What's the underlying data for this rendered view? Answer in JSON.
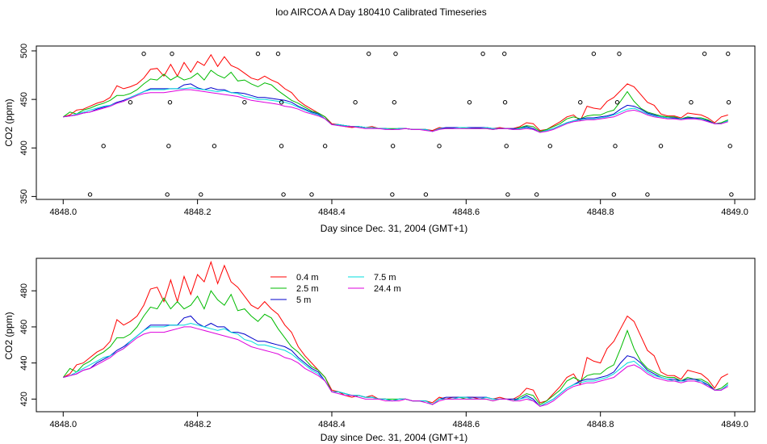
{
  "title": "loo AIRCOA A  Day 180410  Calibrated Timeseries",
  "chart_data": [
    {
      "type": "line",
      "xlabel": "Day since Dec. 31, 2004 (GMT+1)",
      "ylabel": "CO2 (ppm)",
      "xlim": [
        4847.96,
        4849.03
      ],
      "ylim": [
        347,
        505
      ],
      "xticks": [
        4848.0,
        4848.2,
        4848.4,
        4848.6,
        4848.8,
        4849.0
      ],
      "xtick_labels": [
        "4848.0",
        "4848.2",
        "4848.4",
        "4848.6",
        "4848.8",
        "4849.0"
      ],
      "yticks": [
        350,
        400,
        450,
        500
      ],
      "ytick_labels": [
        "350",
        "400",
        "450",
        "500"
      ],
      "grid": false,
      "legend": "none",
      "flag_points": [
        {
          "x": 4848.04,
          "y": 352
        },
        {
          "x": 4848.06,
          "y": 402
        },
        {
          "x": 4848.1,
          "y": 447
        },
        {
          "x": 4848.12,
          "y": 497
        },
        {
          "x": 4848.155,
          "y": 352
        },
        {
          "x": 4848.157,
          "y": 402
        },
        {
          "x": 4848.159,
          "y": 447
        },
        {
          "x": 4848.162,
          "y": 497
        },
        {
          "x": 4848.205,
          "y": 352
        },
        {
          "x": 4848.225,
          "y": 402
        },
        {
          "x": 4848.27,
          "y": 447
        },
        {
          "x": 4848.29,
          "y": 497
        },
        {
          "x": 4848.32,
          "y": 497
        },
        {
          "x": 4848.325,
          "y": 447
        },
        {
          "x": 4848.325,
          "y": 402
        },
        {
          "x": 4848.328,
          "y": 352
        },
        {
          "x": 4848.37,
          "y": 352
        },
        {
          "x": 4848.39,
          "y": 402
        },
        {
          "x": 4848.435,
          "y": 447
        },
        {
          "x": 4848.455,
          "y": 497
        },
        {
          "x": 4848.49,
          "y": 352
        },
        {
          "x": 4848.491,
          "y": 402
        },
        {
          "x": 4848.493,
          "y": 447
        },
        {
          "x": 4848.495,
          "y": 497
        },
        {
          "x": 4848.54,
          "y": 352
        },
        {
          "x": 4848.56,
          "y": 402
        },
        {
          "x": 4848.605,
          "y": 447
        },
        {
          "x": 4848.625,
          "y": 497
        },
        {
          "x": 4848.657,
          "y": 497
        },
        {
          "x": 4848.658,
          "y": 447
        },
        {
          "x": 4848.66,
          "y": 402
        },
        {
          "x": 4848.662,
          "y": 352
        },
        {
          "x": 4848.705,
          "y": 352
        },
        {
          "x": 4848.725,
          "y": 402
        },
        {
          "x": 4848.77,
          "y": 447
        },
        {
          "x": 4848.79,
          "y": 497
        },
        {
          "x": 4848.82,
          "y": 352
        },
        {
          "x": 4848.822,
          "y": 402
        },
        {
          "x": 4848.825,
          "y": 447
        },
        {
          "x": 4848.828,
          "y": 497
        },
        {
          "x": 4848.87,
          "y": 352
        },
        {
          "x": 4848.89,
          "y": 402
        },
        {
          "x": 4848.935,
          "y": 447
        },
        {
          "x": 4848.955,
          "y": 497
        },
        {
          "x": 4848.99,
          "y": 497
        },
        {
          "x": 4848.991,
          "y": 447
        },
        {
          "x": 4848.993,
          "y": 402
        },
        {
          "x": 4848.995,
          "y": 352
        }
      ]
    },
    {
      "type": "line",
      "xlabel": "Day since Dec. 31, 2004 (GMT+1)",
      "ylabel": "CO2 (ppm)",
      "xlim": [
        4847.96,
        4849.03
      ],
      "ylim": [
        413,
        498
      ],
      "xticks": [
        4848.0,
        4848.2,
        4848.4,
        4848.6,
        4848.8,
        4849.0
      ],
      "xtick_labels": [
        "4848.0",
        "4848.2",
        "4848.4",
        "4848.6",
        "4848.8",
        "4849.0"
      ],
      "yticks": [
        420,
        440,
        460,
        480
      ],
      "ytick_labels": [
        "420",
        "440",
        "460",
        "480"
      ],
      "grid": false,
      "legend": "top-left, inside plot, two columns, no frame"
    }
  ],
  "shared_data": {
    "x": [
      4848.0,
      4848.01,
      4848.02,
      4848.03,
      4848.04,
      4848.05,
      4848.06,
      4848.07,
      4848.08,
      4848.09,
      4848.1,
      4848.11,
      4848.12,
      4848.13,
      4848.14,
      4848.15,
      4848.16,
      4848.17,
      4848.18,
      4848.19,
      4848.2,
      4848.21,
      4848.22,
      4848.23,
      4848.24,
      4848.25,
      4848.26,
      4848.27,
      4848.28,
      4848.29,
      4848.3,
      4848.31,
      4848.32,
      4848.33,
      4848.34,
      4848.35,
      4848.36,
      4848.37,
      4848.38,
      4848.39,
      4848.4,
      4848.41,
      4848.42,
      4848.43,
      4848.44,
      4848.45,
      4848.46,
      4848.47,
      4848.48,
      4848.49,
      4848.5,
      4848.51,
      4848.52,
      4848.53,
      4848.54,
      4848.55,
      4848.56,
      4848.57,
      4848.58,
      4848.59,
      4848.6,
      4848.61,
      4848.62,
      4848.63,
      4848.64,
      4848.65,
      4848.66,
      4848.67,
      4848.68,
      4848.69,
      4848.7,
      4848.71,
      4848.72,
      4848.73,
      4848.74,
      4848.75,
      4848.76,
      4848.77,
      4848.78,
      4848.79,
      4848.8,
      4848.81,
      4848.82,
      4848.83,
      4848.84,
      4848.85,
      4848.86,
      4848.87,
      4848.88,
      4848.89,
      4848.9,
      4848.91,
      4848.92,
      4848.93,
      4848.94,
      4848.95,
      4848.96,
      4848.97,
      4848.98,
      4848.99
    ],
    "series": [
      {
        "name": "0.4 m",
        "color": "#ff0000",
        "values": [
          432,
          434,
          439,
          440,
          443,
          446,
          448,
          452,
          464,
          461,
          463,
          466,
          472,
          481,
          482,
          474,
          486,
          474,
          488,
          478,
          489,
          485,
          496,
          484,
          494,
          485,
          482,
          477,
          472,
          470,
          474,
          470,
          467,
          461,
          457,
          449,
          444,
          440,
          436,
          432,
          425,
          424,
          422,
          421,
          422,
          421,
          422,
          420,
          420,
          419,
          420,
          420,
          419,
          419,
          419,
          418,
          421,
          420,
          421,
          421,
          421,
          421,
          420,
          421,
          420,
          421,
          420,
          420,
          422,
          426,
          425,
          418,
          419,
          423,
          427,
          432,
          434,
          428,
          443,
          441,
          440,
          448,
          452,
          459,
          466,
          463,
          455,
          447,
          444,
          435,
          433,
          433,
          431,
          436,
          435,
          434,
          431,
          426,
          432,
          434
        ]
      },
      {
        "name": "2.5 m",
        "color": "#00bb00",
        "values": [
          432,
          437,
          435,
          439,
          441,
          444,
          446,
          449,
          454,
          454,
          456,
          460,
          466,
          471,
          470,
          476,
          470,
          474,
          470,
          472,
          477,
          470,
          480,
          475,
          472,
          478,
          469,
          470,
          466,
          463,
          467,
          465,
          459,
          454,
          449,
          446,
          442,
          438,
          436,
          432,
          424,
          424,
          423,
          422,
          422,
          421,
          421,
          420,
          420,
          420,
          420,
          420,
          419,
          419,
          419,
          417,
          420,
          420,
          420,
          421,
          420,
          420,
          420,
          420,
          419,
          420,
          420,
          419,
          421,
          423,
          422,
          417,
          419,
          422,
          425,
          430,
          432,
          430,
          433,
          434,
          434,
          437,
          439,
          448,
          458,
          448,
          441,
          437,
          435,
          433,
          432,
          432,
          430,
          432,
          431,
          431,
          429,
          425,
          426,
          429
        ]
      },
      {
        "name": "5 m",
        "color": "#0000cc",
        "values": [
          432,
          433,
          434,
          436,
          437,
          440,
          442,
          444,
          447,
          449,
          452,
          455,
          458,
          461,
          461,
          461,
          461,
          461,
          465,
          466,
          462,
          460,
          462,
          460,
          460,
          457,
          457,
          456,
          454,
          452,
          452,
          451,
          450,
          449,
          447,
          443,
          440,
          437,
          435,
          430,
          424,
          424,
          423,
          422,
          422,
          421,
          421,
          420,
          420,
          419,
          420,
          420,
          419,
          419,
          419,
          417,
          420,
          421,
          421,
          421,
          421,
          421,
          421,
          421,
          420,
          420,
          420,
          420,
          420,
          422,
          420,
          416,
          418,
          420,
          423,
          426,
          428,
          430,
          431,
          431,
          432,
          433,
          435,
          440,
          444,
          443,
          440,
          436,
          434,
          432,
          431,
          431,
          430,
          431,
          431,
          430,
          428,
          425,
          425,
          428
        ]
      },
      {
        "name": "7.5 m",
        "color": "#00dddd",
        "values": [
          432,
          433,
          435,
          437,
          439,
          441,
          443,
          444,
          446,
          448,
          452,
          455,
          458,
          460,
          460,
          460,
          461,
          461,
          461,
          462,
          461,
          460,
          459,
          458,
          459,
          457,
          456,
          453,
          452,
          450,
          450,
          449,
          448,
          447,
          445,
          442,
          439,
          436,
          434,
          430,
          424,
          424,
          423,
          422,
          422,
          421,
          421,
          420,
          420,
          419,
          420,
          420,
          419,
          419,
          419,
          417,
          420,
          420,
          420,
          421,
          421,
          420,
          420,
          421,
          420,
          420,
          420,
          419,
          420,
          421,
          419,
          416,
          418,
          420,
          423,
          426,
          428,
          429,
          430,
          430,
          431,
          432,
          434,
          437,
          440,
          441,
          438,
          435,
          433,
          432,
          431,
          430,
          430,
          430,
          430,
          430,
          427,
          425,
          425,
          428
        ]
      },
      {
        "name": "24.4 m",
        "color": "#dd00dd",
        "values": [
          432,
          433,
          434,
          436,
          437,
          439,
          441,
          443,
          446,
          448,
          451,
          454,
          456,
          457,
          457,
          457,
          458,
          459,
          460,
          460,
          459,
          458,
          457,
          456,
          455,
          454,
          453,
          451,
          449,
          448,
          447,
          446,
          445,
          443,
          442,
          440,
          437,
          435,
          433,
          430,
          424,
          423,
          422,
          422,
          421,
          420,
          420,
          420,
          419,
          419,
          419,
          420,
          419,
          419,
          418,
          417,
          419,
          420,
          420,
          420,
          420,
          420,
          420,
          420,
          419,
          420,
          420,
          419,
          419,
          420,
          419,
          416,
          417,
          419,
          422,
          425,
          427,
          428,
          429,
          429,
          430,
          431,
          432,
          435,
          438,
          439,
          437,
          434,
          432,
          431,
          430,
          430,
          429,
          430,
          430,
          429,
          427,
          425,
          425,
          427
        ]
      }
    ]
  }
}
